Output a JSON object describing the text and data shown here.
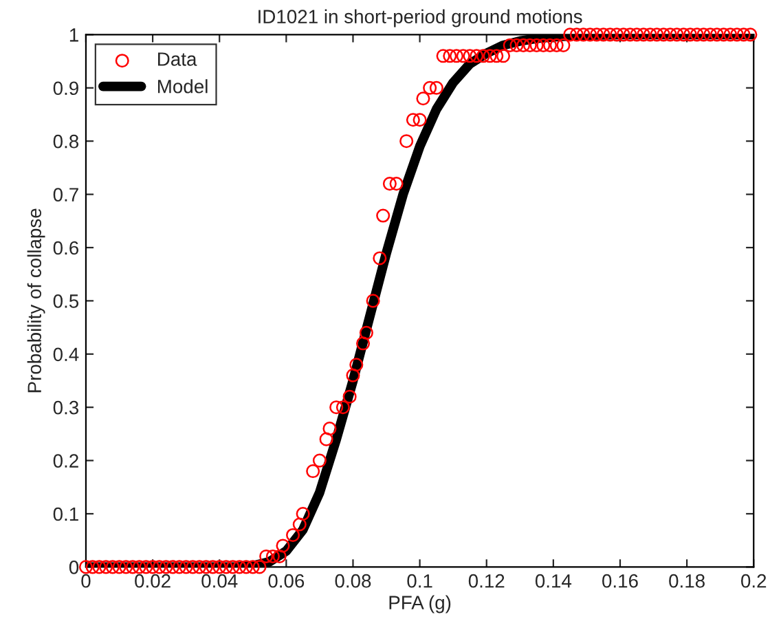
{
  "chart_data": {
    "type": "line",
    "title": "ID1021 in short-period ground motions",
    "xlabel": "PFA (g)",
    "ylabel": "Probability of collapse",
    "xlim": [
      0,
      0.2
    ],
    "ylim": [
      0,
      1
    ],
    "xticks": [
      0,
      0.02,
      0.04,
      0.06,
      0.08,
      0.1,
      0.12,
      0.14,
      0.16,
      0.18,
      0.2
    ],
    "yticks": [
      0,
      0.1,
      0.2,
      0.3,
      0.4,
      0.5,
      0.6,
      0.7,
      0.8,
      0.9,
      1
    ],
    "legend": "top left",
    "grid": false,
    "series": [
      {
        "name": "Data",
        "type": "scatter",
        "marker": "circle",
        "color": "#ff0000",
        "x": [
          0,
          0.002,
          0.004,
          0.006,
          0.008,
          0.01,
          0.012,
          0.014,
          0.016,
          0.018,
          0.02,
          0.022,
          0.024,
          0.026,
          0.028,
          0.03,
          0.032,
          0.034,
          0.036,
          0.038,
          0.04,
          0.042,
          0.044,
          0.046,
          0.048,
          0.05,
          0.052,
          0.054,
          0.056,
          0.058,
          0.059,
          0.062,
          0.064,
          0.065,
          0.068,
          0.07,
          0.072,
          0.073,
          0.075,
          0.077,
          0.079,
          0.08,
          0.081,
          0.083,
          0.084,
          0.086,
          0.088,
          0.089,
          0.091,
          0.093,
          0.096,
          0.098,
          0.1,
          0.101,
          0.103,
          0.105,
          0.107,
          0.109,
          0.111,
          0.113,
          0.115,
          0.117,
          0.119,
          0.121,
          0.123,
          0.125,
          0.127,
          0.129,
          0.131,
          0.133,
          0.135,
          0.137,
          0.139,
          0.141,
          0.143,
          0.145,
          0.147,
          0.149,
          0.151,
          0.153,
          0.155,
          0.157,
          0.159,
          0.161,
          0.163,
          0.165,
          0.167,
          0.169,
          0.171,
          0.173,
          0.175,
          0.177,
          0.179,
          0.181,
          0.183,
          0.185,
          0.187,
          0.189,
          0.191,
          0.193,
          0.195,
          0.197,
          0.199
        ],
        "values": [
          0,
          0,
          0,
          0,
          0,
          0,
          0,
          0,
          0,
          0,
          0,
          0,
          0,
          0,
          0,
          0,
          0,
          0,
          0,
          0,
          0,
          0,
          0,
          0,
          0,
          0,
          0,
          0.02,
          0.02,
          0.02,
          0.04,
          0.06,
          0.08,
          0.1,
          0.18,
          0.2,
          0.24,
          0.26,
          0.3,
          0.3,
          0.32,
          0.36,
          0.38,
          0.42,
          0.44,
          0.5,
          0.58,
          0.66,
          0.72,
          0.72,
          0.8,
          0.84,
          0.84,
          0.88,
          0.9,
          0.9,
          0.96,
          0.96,
          0.96,
          0.96,
          0.96,
          0.96,
          0.96,
          0.96,
          0.96,
          0.96,
          0.98,
          0.98,
          0.98,
          0.98,
          0.98,
          0.98,
          0.98,
          0.98,
          0.98,
          1,
          1,
          1,
          1,
          1,
          1,
          1,
          1,
          1,
          1,
          1,
          1,
          1,
          1,
          1,
          1,
          1,
          1,
          1,
          1,
          1,
          1,
          1,
          1,
          1,
          1,
          1,
          1
        ]
      },
      {
        "name": "Model",
        "marker": "none",
        "line_style": "solid",
        "color": "#000000",
        "x": [
          0,
          0.045,
          0.05,
          0.055,
          0.06,
          0.065,
          0.07,
          0.075,
          0.08,
          0.085,
          0.09,
          0.095,
          0.1,
          0.105,
          0.11,
          0.115,
          0.12,
          0.125,
          0.13,
          0.135,
          0.14,
          0.15,
          0.16,
          0.2
        ],
        "values": [
          0,
          0,
          0.002,
          0.01,
          0.03,
          0.07,
          0.14,
          0.24,
          0.35,
          0.47,
          0.59,
          0.7,
          0.79,
          0.86,
          0.91,
          0.945,
          0.965,
          0.98,
          0.988,
          0.993,
          0.996,
          0.999,
          1,
          1
        ]
      }
    ]
  }
}
